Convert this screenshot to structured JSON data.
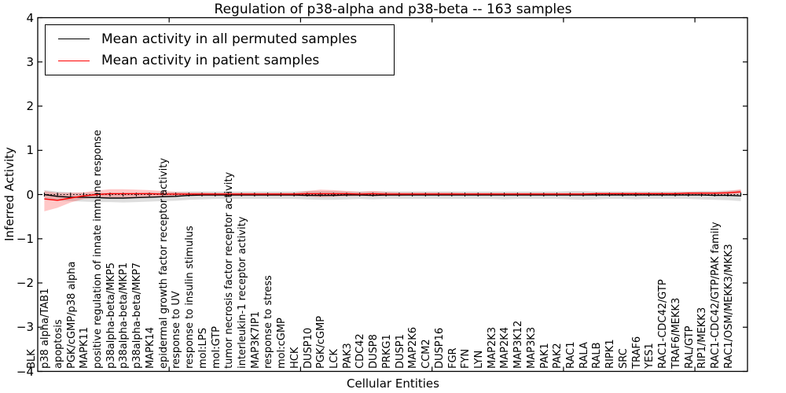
{
  "chart_data": {
    "type": "line",
    "title": "Regulation of p38-alpha and p38-beta -- 163 samples",
    "xlabel": "Cellular Entities",
    "ylabel": "Inferred Activity",
    "ylim": [
      -4,
      4
    ],
    "grid": false,
    "legend_position": "upper-left",
    "yticks": [
      {
        "value": 4,
        "label": "4"
      },
      {
        "value": 3,
        "label": "3"
      },
      {
        "value": 2,
        "label": "2"
      },
      {
        "value": 1,
        "label": "1"
      },
      {
        "value": 0,
        "label": "0"
      },
      {
        "value": -1,
        "label": "−1"
      },
      {
        "value": -2,
        "label": "−2"
      },
      {
        "value": -3,
        "label": "−3"
      },
      {
        "value": -4,
        "label": "−4"
      }
    ],
    "xticks_major": [
      10,
      20,
      30,
      40,
      50
    ],
    "zero_line": {
      "style": "dotted",
      "color": "#000000"
    },
    "categories": [
      "BLK",
      "p38 alpha/TAB1",
      "apoptosis",
      "PGK/cGMP/p38 alpha",
      "MAPK11",
      "positive regulation of innate immune response",
      "p38alpha-beta/MKP5",
      "p38alpha-beta/MKP1",
      "p38alpha-beta/MKP7",
      "MAPK14",
      "epidermal growth factor receptor activity",
      "response to UV",
      "response to insulin stimulus",
      "mol:LPS",
      "mol:GTP",
      "tumor necrosis factor receptor activity",
      "interleukin-1 receptor activity",
      "MAP3K7IP1",
      "response to stress",
      "mol:cGMP",
      "HCK",
      "DUSP10",
      "PGK/cGMP",
      "LCK",
      "PAK3",
      "CDC42",
      "DUSP8",
      "PRKG1",
      "DUSP1",
      "MAP2K6",
      "CCM2",
      "DUSP16",
      "FGR",
      "FYN",
      "LYN",
      "MAP2K3",
      "MAP2K4",
      "MAP3K12",
      "MAP3K3",
      "PAK1",
      "PAK2",
      "RAC1",
      "RALA",
      "RALB",
      "RIPK1",
      "SRC",
      "TRAF6",
      "YES1",
      "RAC1-CDC42/GTP",
      "TRAF6/MEKK3",
      "RAL/GTP",
      "RIP1/MEKK3",
      "RAC1-CDC42/GTP/PAK family",
      "RAC1/OSM/MEKK3/MKK3"
    ],
    "series": [
      {
        "name": "Mean activity in all permuted samples",
        "color": "#000000",
        "band_color": "rgba(0,0,0,0.13)",
        "values": [
          0.0,
          -0.04,
          -0.06,
          -0.06,
          -0.07,
          -0.08,
          -0.08,
          -0.07,
          -0.06,
          -0.05,
          -0.04,
          -0.02,
          -0.01,
          -0.01,
          -0.01,
          -0.01,
          -0.01,
          -0.01,
          -0.01,
          -0.01,
          -0.02,
          -0.02,
          -0.02,
          -0.01,
          -0.01,
          -0.02,
          -0.01,
          -0.01,
          -0.01,
          -0.01,
          -0.01,
          -0.01,
          -0.01,
          -0.01,
          -0.01,
          -0.01,
          -0.01,
          -0.01,
          -0.01,
          -0.01,
          -0.01,
          -0.01,
          -0.01,
          -0.01,
          -0.01,
          -0.01,
          -0.01,
          -0.01,
          -0.01,
          -0.01,
          -0.01,
          -0.02,
          -0.02,
          -0.03
        ],
        "band_upper": [
          0.1,
          0.07,
          0.05,
          0.04,
          0.04,
          0.04,
          0.04,
          0.04,
          0.05,
          0.05,
          0.06,
          0.07,
          0.07,
          0.07,
          0.07,
          0.07,
          0.07,
          0.07,
          0.07,
          0.07,
          0.08,
          0.08,
          0.08,
          0.07,
          0.07,
          0.07,
          0.07,
          0.07,
          0.07,
          0.07,
          0.07,
          0.07,
          0.07,
          0.07,
          0.07,
          0.07,
          0.07,
          0.07,
          0.07,
          0.07,
          0.08,
          0.08,
          0.07,
          0.07,
          0.07,
          0.07,
          0.07,
          0.07,
          0.07,
          0.07,
          0.08,
          0.08,
          0.09,
          0.1
        ],
        "band_lower": [
          -0.12,
          -0.14,
          -0.15,
          -0.16,
          -0.17,
          -0.17,
          -0.18,
          -0.17,
          -0.16,
          -0.15,
          -0.14,
          -0.12,
          -0.11,
          -0.1,
          -0.1,
          -0.1,
          -0.1,
          -0.1,
          -0.1,
          -0.1,
          -0.11,
          -0.12,
          -0.12,
          -0.11,
          -0.1,
          -0.11,
          -0.1,
          -0.1,
          -0.1,
          -0.1,
          -0.1,
          -0.1,
          -0.1,
          -0.1,
          -0.1,
          -0.11,
          -0.1,
          -0.1,
          -0.1,
          -0.1,
          -0.11,
          -0.12,
          -0.11,
          -0.1,
          -0.1,
          -0.11,
          -0.1,
          -0.1,
          -0.1,
          -0.1,
          -0.11,
          -0.12,
          -0.13,
          -0.15
        ]
      },
      {
        "name": "Mean activity in patient samples",
        "color": "#ff0000",
        "band_color": "rgba(255,0,0,0.22)",
        "values": [
          -0.1,
          -0.13,
          -0.08,
          -0.03,
          0.0,
          0.02,
          0.02,
          0.02,
          0.02,
          0.01,
          0.01,
          0.01,
          0.01,
          0.01,
          0.01,
          0.01,
          0.01,
          0.01,
          0.01,
          0.01,
          0.02,
          0.02,
          0.02,
          0.02,
          0.01,
          0.02,
          0.01,
          0.01,
          0.01,
          0.01,
          0.01,
          0.01,
          0.01,
          0.01,
          0.01,
          0.01,
          0.01,
          0.01,
          0.01,
          0.01,
          0.01,
          0.01,
          0.02,
          0.02,
          0.02,
          0.02,
          0.02,
          0.02,
          0.02,
          0.03,
          0.03,
          0.03,
          0.04,
          0.06
        ],
        "band_upper": [
          0.08,
          0.04,
          0.04,
          0.05,
          0.09,
          0.12,
          0.12,
          0.11,
          0.1,
          0.08,
          0.06,
          0.05,
          0.05,
          0.04,
          0.04,
          0.04,
          0.04,
          0.04,
          0.04,
          0.04,
          0.08,
          0.11,
          0.1,
          0.08,
          0.06,
          0.08,
          0.06,
          0.05,
          0.05,
          0.05,
          0.05,
          0.05,
          0.04,
          0.04,
          0.04,
          0.04,
          0.04,
          0.04,
          0.04,
          0.04,
          0.04,
          0.04,
          0.05,
          0.05,
          0.05,
          0.05,
          0.05,
          0.05,
          0.05,
          0.06,
          0.06,
          0.06,
          0.08,
          0.12
        ],
        "band_lower": [
          -0.38,
          -0.3,
          -0.18,
          -0.1,
          -0.07,
          -0.07,
          -0.07,
          -0.06,
          -0.06,
          -0.05,
          -0.04,
          -0.03,
          -0.03,
          -0.03,
          -0.03,
          -0.03,
          -0.03,
          -0.03,
          -0.03,
          -0.03,
          -0.04,
          -0.06,
          -0.05,
          -0.04,
          -0.03,
          -0.04,
          -0.03,
          -0.03,
          -0.02,
          -0.02,
          -0.02,
          -0.02,
          -0.02,
          -0.02,
          -0.02,
          -0.02,
          -0.02,
          -0.02,
          -0.02,
          -0.02,
          -0.02,
          -0.02,
          -0.02,
          -0.02,
          -0.02,
          -0.02,
          -0.02,
          -0.02,
          -0.02,
          -0.02,
          -0.02,
          -0.02,
          -0.01,
          0.01
        ]
      }
    ]
  }
}
